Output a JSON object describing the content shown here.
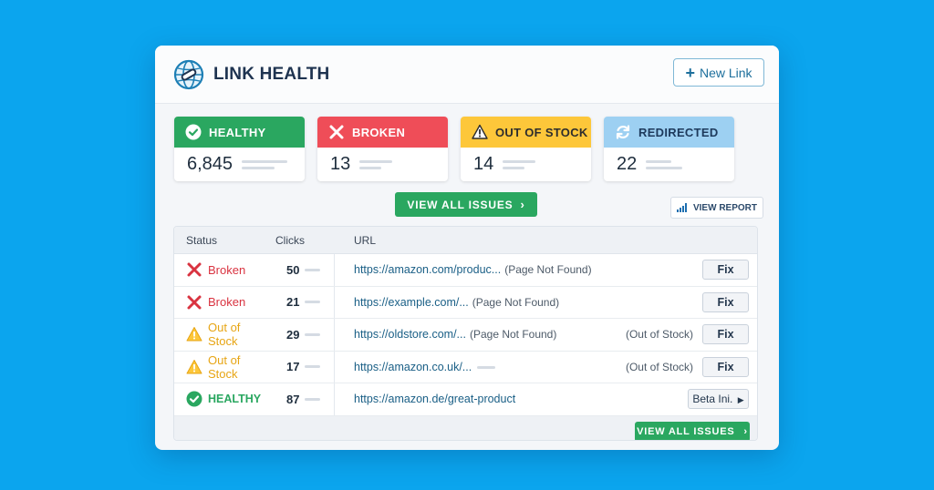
{
  "header": {
    "title": "LINK HEALTH",
    "new_link_label": "New Link",
    "logo_icon": "globe-link-icon"
  },
  "summary": [
    {
      "label": "HEALTHY",
      "value": "6,845",
      "icon": "check-circle-icon",
      "color": "#2aa760",
      "text_color": "#ffffff"
    },
    {
      "label": "BROKEN",
      "value": "13",
      "icon": "x-icon",
      "color": "#ef4d58",
      "text_color": "#ffffff"
    },
    {
      "label": "OUT OF STOCK",
      "value": "14",
      "icon": "warning-icon",
      "color": "#fdc73a",
      "text_color": "#2d2d2d"
    },
    {
      "label": "REDIRECTED",
      "value": "22",
      "icon": "refresh-icon",
      "color": "#9dd0f2",
      "text_color": "#1e3a5c"
    }
  ],
  "actions": {
    "view_all_issues": "VIEW ALL ISSUES",
    "view_report": "VIEW REPORT"
  },
  "table": {
    "columns": {
      "status": "Status",
      "clicks": "Clicks",
      "url": "URL"
    },
    "rows": [
      {
        "status": "Broken",
        "status_icon": "x-icon",
        "status_color": "#d93340",
        "clicks": "50",
        "url": "https://amazon.com/produc...",
        "note": "(Page Not Found)",
        "extra": "",
        "action": "Fix"
      },
      {
        "status": "Broken",
        "status_icon": "x-icon",
        "status_color": "#d93340",
        "clicks": "21",
        "url": "https://example.com/...",
        "note": "(Page Not Found)",
        "extra": "",
        "action": "Fix"
      },
      {
        "status": "Out of Stock",
        "status_icon": "warning-icon",
        "status_color": "#e7a514",
        "clicks": "29",
        "url": "https://oldstore.com/...",
        "note": "(Page Not Found)",
        "extra": "(Out of Stock)",
        "action": "Fix"
      },
      {
        "status": "Out of Stock",
        "status_icon": "warning-icon",
        "status_color": "#e7a514",
        "clicks": "17",
        "url": "https://amazon.co.uk/...",
        "note": "",
        "extra": "(Out of Stock)",
        "action": "Fix"
      },
      {
        "status": "HEALTHY",
        "status_icon": "check-circle-icon",
        "status_color": "#2aa760",
        "clicks": "87",
        "url": "https://amazon.de/great-product",
        "note": "",
        "extra": "",
        "action": "Beta Ini."
      }
    ],
    "footer_button": "VIEW ALL ISSUES"
  }
}
